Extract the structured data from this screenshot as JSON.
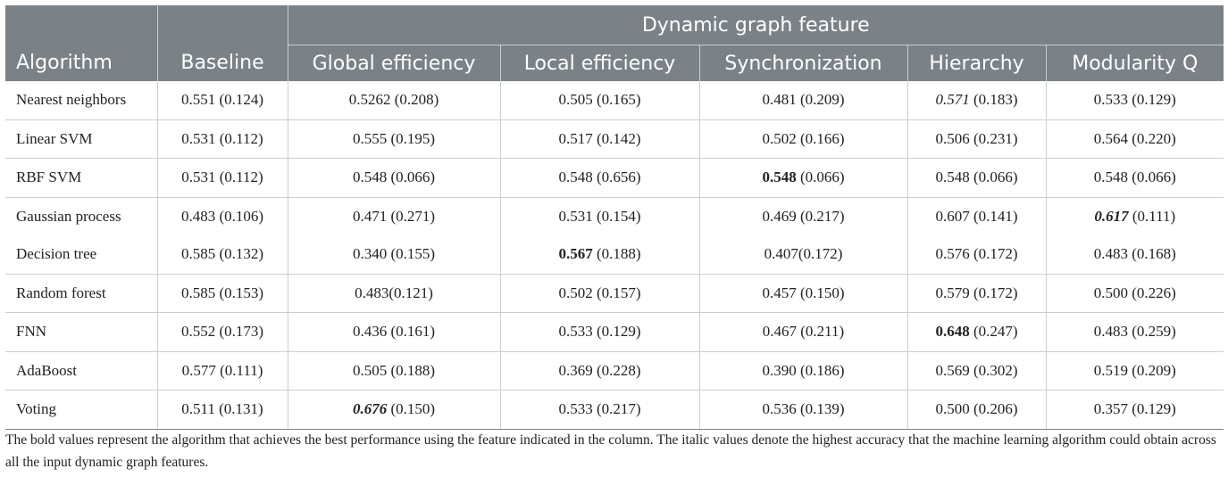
{
  "table": {
    "group_header": "Dynamic graph feature",
    "columns": [
      "Algorithm",
      "Baseline",
      "Global efficiency",
      "Local efficiency",
      "Synchronization",
      "Hierarchy",
      "Modularity Q"
    ],
    "rows": [
      {
        "algorithm": "Nearest neighbors",
        "cells": [
          {
            "v": "0.551",
            "sd": " (0.124)"
          },
          {
            "v": "0.5262",
            "sd": " (0.208)"
          },
          {
            "v": "0.505",
            "sd": " (0.165)"
          },
          {
            "v": "0.481",
            "sd": " (0.209)"
          },
          {
            "v": "0.571",
            "sd": " (0.183)",
            "style": "italic"
          },
          {
            "v": "0.533",
            "sd": " (0.129)"
          }
        ]
      },
      {
        "algorithm": "Linear SVM",
        "cells": [
          {
            "v": "0.531",
            "sd": " (0.112)"
          },
          {
            "v": "0.555",
            "sd": " (0.195)"
          },
          {
            "v": "0.517",
            "sd": " (0.142)"
          },
          {
            "v": "0.502",
            "sd": " (0.166)"
          },
          {
            "v": "0.506",
            "sd": " (0.231)"
          },
          {
            "v": "0.564",
            "sd": " (0.220)"
          }
        ]
      },
      {
        "algorithm": "RBF SVM",
        "cells": [
          {
            "v": "0.531",
            "sd": " (0.112)"
          },
          {
            "v": "0.548",
            "sd": " (0.066)"
          },
          {
            "v": "0.548",
            "sd": " (0.656)"
          },
          {
            "v": "0.548",
            "sd": " (0.066)",
            "style": "bold"
          },
          {
            "v": "0.548",
            "sd": " (0.066)"
          },
          {
            "v": "0.548",
            "sd": " (0.066)"
          }
        ]
      },
      {
        "algorithm": "Gaussian process",
        "cells": [
          {
            "v": "0.483",
            "sd": " (0.106)"
          },
          {
            "v": "0.471",
            "sd": " (0.271)"
          },
          {
            "v": "0.531",
            "sd": " (0.154)"
          },
          {
            "v": "0.469",
            "sd": " (0.217)"
          },
          {
            "v": "0.607",
            "sd": " (0.141)"
          },
          {
            "v": "0.617",
            "sd": " (0.111)",
            "style": "bold italic"
          }
        ]
      },
      {
        "algorithm": "Decision tree",
        "cells": [
          {
            "v": "0.585",
            "sd": " (0.132)"
          },
          {
            "v": "0.340",
            "sd": " (0.155)"
          },
          {
            "v": "0.567",
            "sd": " (0.188)",
            "style": "bold"
          },
          {
            "v": "0.407",
            "sd": "(0.172)"
          },
          {
            "v": "0.576",
            "sd": " (0.172)"
          },
          {
            "v": "0.483",
            "sd": " (0.168)"
          }
        ]
      },
      {
        "algorithm": "Random forest",
        "cells": [
          {
            "v": "0.585",
            "sd": " (0.153)"
          },
          {
            "v": "0.483",
            "sd": "(0.121)"
          },
          {
            "v": "0.502",
            "sd": " (0.157)"
          },
          {
            "v": "0.457",
            "sd": " (0.150)"
          },
          {
            "v": "0.579",
            "sd": " (0.172)"
          },
          {
            "v": "0.500",
            "sd": " (0.226)"
          }
        ]
      },
      {
        "algorithm": "FNN",
        "cells": [
          {
            "v": "0.552",
            "sd": " (0.173)"
          },
          {
            "v": "0.436",
            "sd": " (0.161)"
          },
          {
            "v": "0.533",
            "sd": " (0.129)"
          },
          {
            "v": "0.467",
            "sd": " (0.211)"
          },
          {
            "v": "0.648",
            "sd": " (0.247)",
            "style": "bold"
          },
          {
            "v": "0.483",
            "sd": " (0.259)"
          }
        ]
      },
      {
        "algorithm": "AdaBoost",
        "cells": [
          {
            "v": "0.577",
            "sd": " (0.111)"
          },
          {
            "v": "0.505",
            "sd": " (0.188)"
          },
          {
            "v": "0.369",
            "sd": " (0.228)"
          },
          {
            "v": "0.390",
            "sd": " (0.186)"
          },
          {
            "v": "0.569",
            "sd": " (0.302)"
          },
          {
            "v": "0.519",
            "sd": " (0.209)"
          }
        ]
      },
      {
        "algorithm": "Voting",
        "cells": [
          {
            "v": "0.511",
            "sd": " (0.131)"
          },
          {
            "v": "0.676",
            "sd": " (0.150)",
            "style": "bold italic"
          },
          {
            "v": "0.533",
            "sd": " (0.217)"
          },
          {
            "v": "0.536",
            "sd": " (0.139)"
          },
          {
            "v": "0.500",
            "sd": " (0.206)"
          },
          {
            "v": "0.357",
            "sd": " (0.129)"
          }
        ]
      }
    ]
  },
  "footnote": "The bold values represent the algorithm that achieves the best performance using the feature indicated in the column. The italic values denote the highest accuracy that the machine learning algorithm could obtain across all the input dynamic graph features."
}
